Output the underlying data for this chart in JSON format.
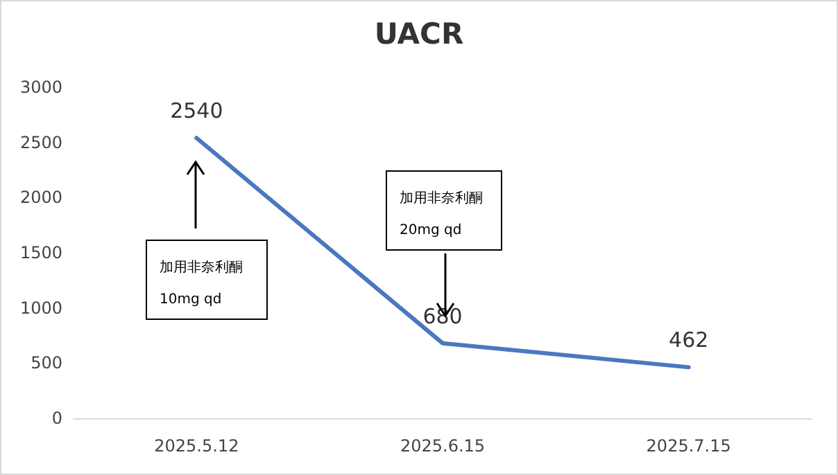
{
  "chart_data": {
    "type": "line",
    "title": "UACR",
    "categories": [
      "2025.5.12",
      "2025.6.15",
      "2025.7.15"
    ],
    "series": [
      {
        "color": "#4a78c0",
        "values": [
          2540,
          680,
          462
        ]
      }
    ],
    "ylim": [
      0,
      3000
    ],
    "yticks": [
      0,
      500,
      1000,
      1500,
      2000,
      2500,
      3000
    ],
    "grid": false,
    "marker": "none",
    "line_style": "solid",
    "data_labels": true,
    "annotations": [
      "加用非奈利酮 10mg qd",
      "加用非奈利酮 20mg qd"
    ]
  }
}
